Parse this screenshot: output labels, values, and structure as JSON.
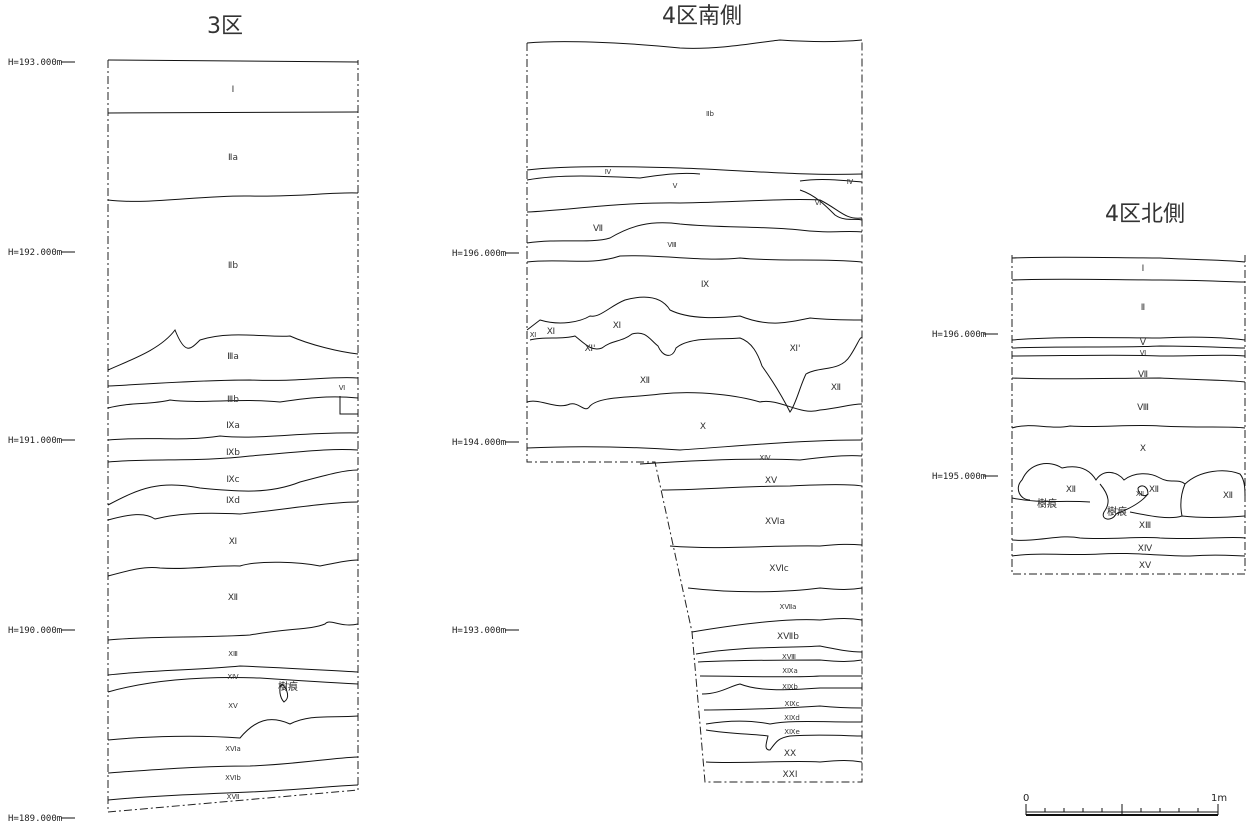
{
  "sections": {
    "s3": {
      "title": "3区",
      "elevations": [
        "H=193.000m",
        "H=192.000m",
        "H=191.000m",
        "H=190.000m",
        "H=189.000m"
      ],
      "layers": [
        "Ⅰ",
        "Ⅱa",
        "Ⅱb",
        "Ⅲa",
        "Ⅲb",
        "Ⅵ",
        "Ⅸa",
        "Ⅸb",
        "Ⅸc",
        "Ⅸd",
        "Ⅺ",
        "Ⅻ",
        "ⅩⅢ",
        "ⅩⅣ",
        "ⅩⅤ",
        "ⅩⅥa",
        "ⅩⅥb",
        "ⅩⅦ"
      ],
      "note": "樹痕"
    },
    "s4s": {
      "title": "4区南側",
      "elevations": [
        "H=196.000m",
        "H=194.000m",
        "H=193.000m"
      ],
      "layers": [
        "Ⅱb",
        "Ⅳ",
        "Ⅴ",
        "Ⅳ",
        "Ⅵ",
        "Ⅶ",
        "Ⅷ",
        "Ⅸ",
        "Ⅺ",
        "Ⅺ",
        "Ⅺ",
        "Ⅺ'",
        "Ⅺ'",
        "Ⅻ",
        "Ⅻ",
        "Ⅹ",
        "ⅩⅣ",
        "ⅩⅤ",
        "ⅩⅥa",
        "ⅩⅥc",
        "ⅩⅦa",
        "ⅩⅦb",
        "ⅩⅧ",
        "ⅩⅨa",
        "ⅩⅨb",
        "ⅩⅨc",
        "ⅩⅨd",
        "ⅩⅨe",
        "ⅩⅩ",
        "ⅩⅩⅠ"
      ]
    },
    "s4n": {
      "title": "4区北側",
      "elevations": [
        "H=196.000m",
        "H=195.000m"
      ],
      "layers": [
        "Ⅰ",
        "Ⅱ",
        "Ⅴ",
        "Ⅵ",
        "Ⅶ",
        "Ⅷ",
        "Ⅹ",
        "Ⅻ",
        "Ⅻ",
        "Ⅻ",
        "ⅩⅢ",
        "ⅩⅣ",
        "ⅩⅤ",
        "ⅩⅡ"
      ],
      "notes": [
        "樹痕",
        "樹痕"
      ]
    }
  },
  "scale": {
    "start": "0",
    "end": "1m"
  }
}
